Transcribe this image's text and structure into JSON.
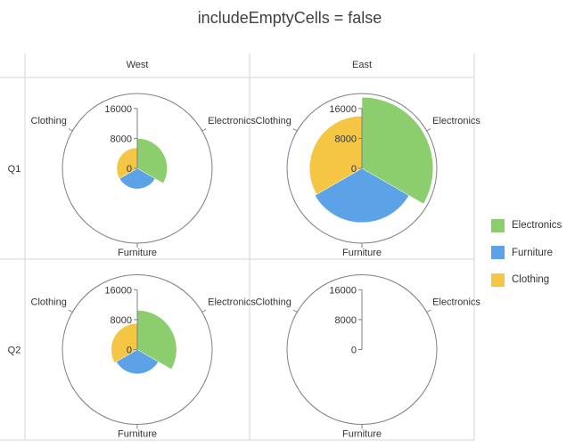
{
  "title": "includeEmptyCells = false",
  "columns": [
    "West",
    "East"
  ],
  "rows": [
    "Q1",
    "Q2"
  ],
  "colors": {
    "Electronics": "#8ccd6e",
    "Furniture": "#5ba3e6",
    "Clothing": "#f5c644",
    "axis": "#808080",
    "grid_lines": "#d6d6d6"
  },
  "legend": [
    {
      "label": "Electronics",
      "color": "#8ccd6e"
    },
    {
      "label": "Furniture",
      "color": "#5ba3e6"
    },
    {
      "label": "Clothing",
      "color": "#f5c644"
    }
  ],
  "chart_data": {
    "type": "radar",
    "subtype": "polar column (trellis)",
    "categories": [
      "Electronics",
      "Furniture",
      "Clothing"
    ],
    "radial_ticks": [
      0,
      8000,
      16000
    ],
    "rmax": 20000,
    "panels": [
      {
        "column": "West",
        "row": "Q1",
        "values": {
          "Electronics": 8000,
          "Furniture": 5500,
          "Clothing": 5500
        }
      },
      {
        "column": "East",
        "row": "Q1",
        "values": {
          "Electronics": 19000,
          "Furniture": 14500,
          "Clothing": 14000
        }
      },
      {
        "column": "West",
        "row": "Q2",
        "values": {
          "Electronics": 10500,
          "Furniture": 6500,
          "Clothing": 7000
        }
      },
      {
        "column": "East",
        "row": "Q2",
        "values": {}
      }
    ]
  }
}
